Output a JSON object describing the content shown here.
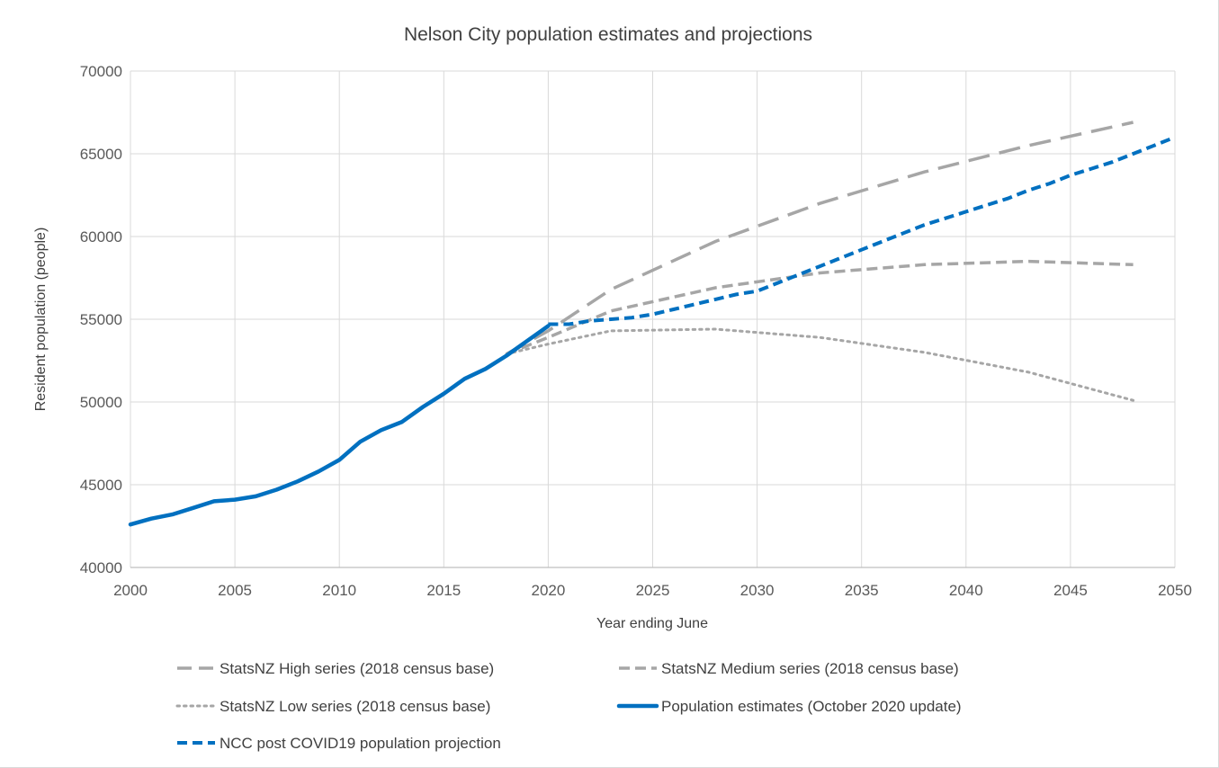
{
  "chart_data": {
    "type": "line",
    "title": "Nelson City population estimates and projections",
    "xlabel": "Year ending June",
    "ylabel": "Resident population (people)",
    "xlim": [
      2000,
      2050
    ],
    "ylim": [
      40000,
      70000
    ],
    "x_ticks": [
      2000,
      2005,
      2010,
      2015,
      2020,
      2025,
      2030,
      2035,
      2040,
      2045,
      2050
    ],
    "y_ticks": [
      40000,
      45000,
      50000,
      55000,
      60000,
      65000,
      70000
    ],
    "grid": true,
    "legend_position": "bottom",
    "series": [
      {
        "name": "StatsNZ High series (2018 census base)",
        "color": "#a6a6a6",
        "style": "long-dash",
        "x": [
          2018,
          2020,
          2023,
          2028,
          2033,
          2038,
          2043,
          2048
        ],
        "y": [
          52900,
          54300,
          56800,
          59700,
          62000,
          63900,
          65500,
          66900
        ]
      },
      {
        "name": "StatsNZ Medium series (2018 census base)",
        "color": "#a6a6a6",
        "style": "dash",
        "x": [
          2018,
          2020,
          2023,
          2028,
          2033,
          2038,
          2043,
          2048
        ],
        "y": [
          52900,
          53900,
          55500,
          56900,
          57800,
          58300,
          58500,
          58300
        ]
      },
      {
        "name": "StatsNZ Low series (2018 census base)",
        "color": "#a6a6a6",
        "style": "dot",
        "x": [
          2018,
          2020,
          2023,
          2028,
          2033,
          2038,
          2043,
          2048
        ],
        "y": [
          52900,
          53500,
          54300,
          54400,
          53900,
          53000,
          51800,
          50100
        ]
      },
      {
        "name": "Population estimates (October 2020 update)",
        "color": "#0070c0",
        "style": "solid",
        "x": [
          2000,
          2001,
          2002,
          2003,
          2004,
          2005,
          2006,
          2007,
          2008,
          2009,
          2010,
          2011,
          2012,
          2013,
          2014,
          2015,
          2016,
          2017,
          2018,
          2019,
          2020
        ],
        "y": [
          42600,
          42950,
          43200,
          43600,
          44000,
          44100,
          44300,
          44700,
          45200,
          45800,
          46500,
          47600,
          48300,
          48800,
          49700,
          50500,
          51400,
          52000,
          52800,
          53700,
          54600
        ]
      },
      {
        "name": "NCC post COVID19 population projection",
        "color": "#0070c0",
        "style": "dash",
        "x": [
          2020,
          2021,
          2022,
          2023,
          2024,
          2025,
          2026,
          2027,
          2028,
          2029,
          2030,
          2031,
          2032,
          2033,
          2034,
          2035,
          2036,
          2037,
          2038,
          2039,
          2040,
          2041,
          2042,
          2043,
          2044,
          2045,
          2046,
          2047,
          2048,
          2049,
          2050
        ],
        "y": [
          54700,
          54700,
          54900,
          55000,
          55100,
          55300,
          55600,
          55900,
          56200,
          56500,
          56700,
          57200,
          57700,
          58200,
          58700,
          59200,
          59700,
          60200,
          60700,
          61100,
          61500,
          61900,
          62300,
          62800,
          63200,
          63700,
          64100,
          64500,
          65000,
          65500,
          66000
        ]
      }
    ]
  }
}
